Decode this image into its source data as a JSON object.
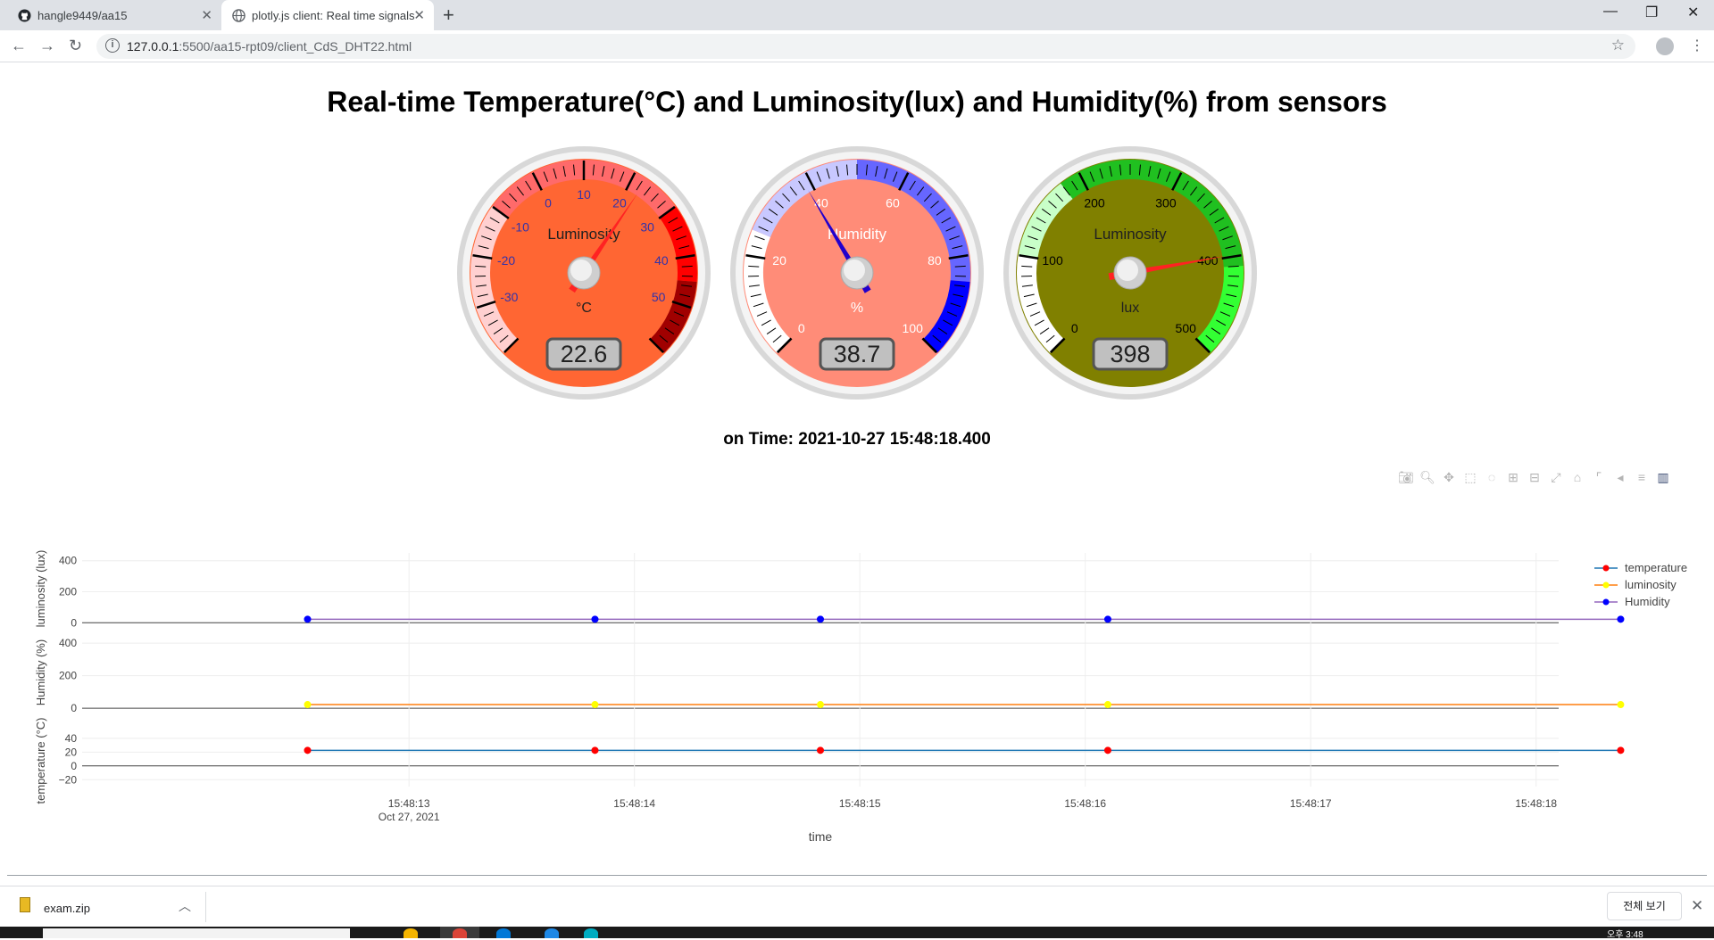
{
  "browser": {
    "tabs": [
      {
        "title": "hangle9449/aa15",
        "icon": "github-icon",
        "active": false
      },
      {
        "title": "plotly.js client: Real time signals",
        "icon": "globe-icon",
        "active": true
      }
    ],
    "url_host": "127.0.0.1",
    "url_path": ":5500/aa15-rpt09/client_CdS_DHT22.html"
  },
  "page": {
    "title": "Real-time Temperature(°C) and Luminosity(lux) and Humidity(%) from sensors",
    "time_label": "on Time: 2021-10-27 15:48:18.400"
  },
  "gauges": [
    {
      "name": "temperature",
      "title": "Luminosity",
      "unit": "°C",
      "value": 22.6,
      "display": "22.6",
      "min": -40,
      "max": 60,
      "face_color": "#ff6633",
      "ticks": [
        "-30",
        "-20",
        "-10",
        "0",
        "10",
        "20",
        "30",
        "40",
        "50"
      ]
    },
    {
      "name": "humidity",
      "title": "Humidity",
      "unit": "%",
      "value": 38.7,
      "display": "38.7",
      "min": 0,
      "max": 100,
      "face_color": "#ff8c78",
      "ticks": [
        "0",
        "20",
        "40",
        "60",
        "80",
        "100"
      ]
    },
    {
      "name": "luminosity",
      "title": "Luminosity",
      "unit": "lux",
      "value": 398,
      "display": "398",
      "min": 0,
      "max": 500,
      "face_color": "#808000",
      "ticks": [
        "0",
        "100",
        "200",
        "300",
        "400",
        "500"
      ]
    }
  ],
  "chart_data": {
    "type": "line",
    "xlabel": "time",
    "x": [
      "15:48:12.550",
      "15:48:13.825",
      "15:48:14.825",
      "15:48:16.100",
      "15:48:18.375"
    ],
    "x_ticks": [
      "15:48:13",
      "15:48:14",
      "15:48:15",
      "15:48:16",
      "15:48:17",
      "15:48:18"
    ],
    "x_tick_sub": "Oct 27, 2021",
    "panels": [
      {
        "ylabel": "luminosity (lux)",
        "yticks": [
          "0",
          "200",
          "400"
        ],
        "ylim": [
          -10,
          450
        ]
      },
      {
        "ylabel": "Humidity (%)",
        "yticks": [
          "0",
          "200",
          "400"
        ],
        "ylim": [
          -10,
          450
        ]
      },
      {
        "ylabel": "temperature (°C)",
        "yticks": [
          "−20",
          "0",
          "20",
          "40"
        ],
        "ylim": [
          -30,
          45
        ]
      }
    ],
    "series": [
      {
        "name": "temperature",
        "color": "#ff0000",
        "line": "#1f77b4",
        "values": [
          22.6,
          22.6,
          22.6,
          22.6,
          22.6
        ],
        "panel": 2
      },
      {
        "name": "luminosity",
        "color": "#ffff00",
        "line": "#ff7f0e",
        "values": [
          22.6,
          22.6,
          22.6,
          22.6,
          22.6
        ],
        "panel": 1
      },
      {
        "name": "Humidity",
        "color": "#0000ff",
        "line": "#9467bd",
        "values": [
          22.6,
          22.6,
          22.6,
          22.6,
          22.6
        ],
        "panel": 0
      }
    ],
    "legend": "right"
  },
  "downloads": {
    "file": "exam.zip",
    "show_all": "전체 보기"
  },
  "taskbar": {
    "clock": "오후 3:48"
  }
}
